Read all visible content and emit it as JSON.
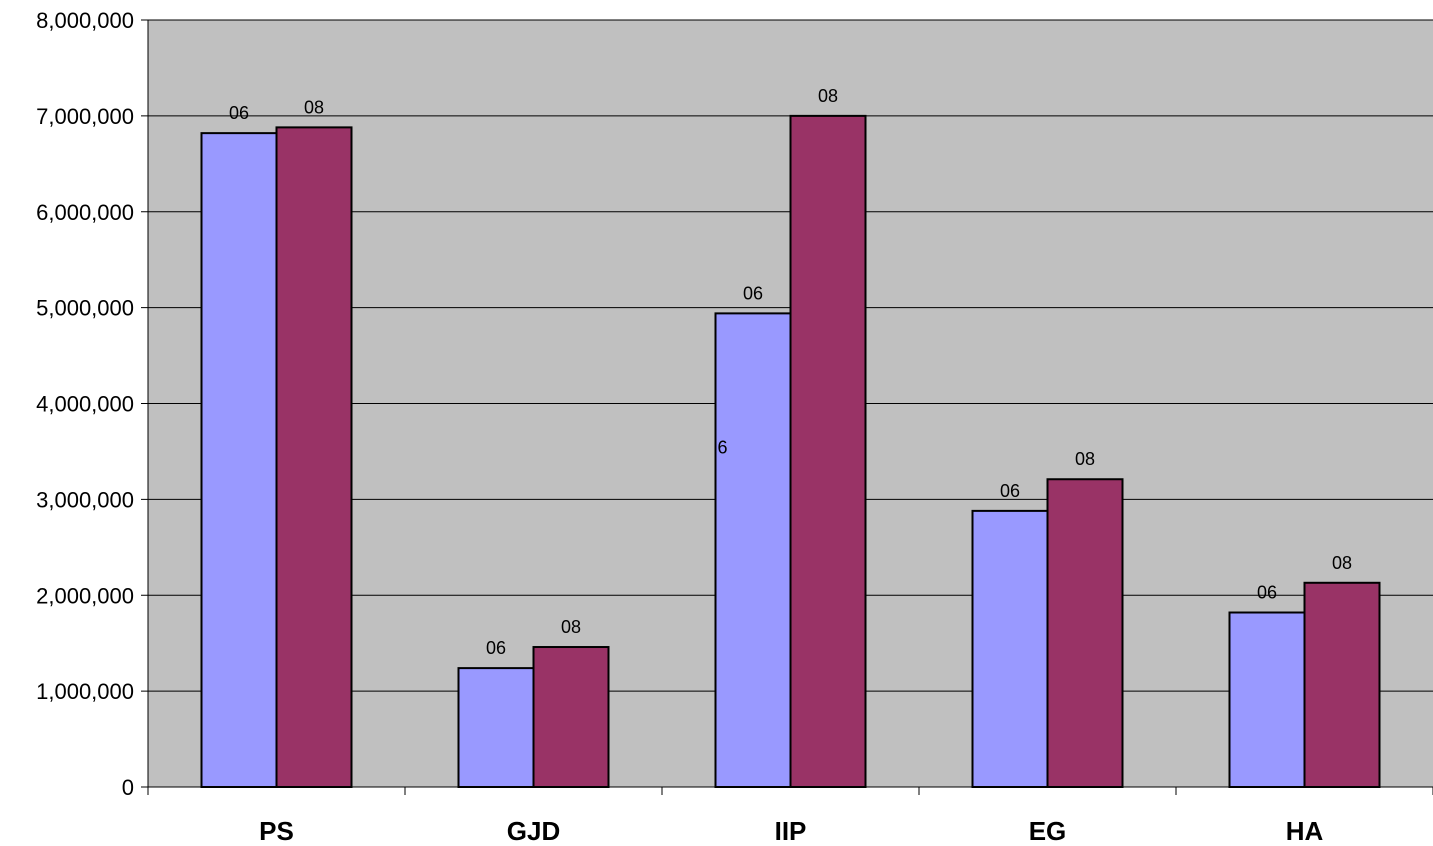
{
  "chart_data": {
    "type": "bar",
    "title": "",
    "xlabel": "",
    "ylabel": "",
    "categories": [
      "PS",
      "GJD",
      "IIP",
      "EG",
      "HA"
    ],
    "series": [
      {
        "values": [
          6820000,
          1240000,
          4940000,
          2880000,
          1820000
        ],
        "color": "#9999ff",
        "data_labels": [
          "06",
          "06",
          "06",
          "06",
          "06"
        ]
      },
      {
        "values": [
          6880000,
          1460000,
          7000000,
          3210000,
          2130000
        ],
        "color": "#993366",
        "data_labels": [
          "08",
          "08",
          "08",
          "08",
          "08"
        ]
      }
    ],
    "ylim": [
      0,
      8000000
    ],
    "yticks": [
      0,
      1000000,
      2000000,
      3000000,
      4000000,
      5000000,
      6000000,
      7000000,
      8000000
    ],
    "ytick_labels": [
      "0",
      "1,000,000",
      "2,000,000",
      "3,000,000",
      "4,000,000",
      "5,000,000",
      "6,000,000",
      "7,000,000",
      "8,000,000"
    ],
    "annotations": [
      {
        "text": "6",
        "category": "IIP",
        "y": 3550000
      }
    ],
    "grid": true,
    "legend": "none",
    "plot_background": "#c0c0c0"
  }
}
